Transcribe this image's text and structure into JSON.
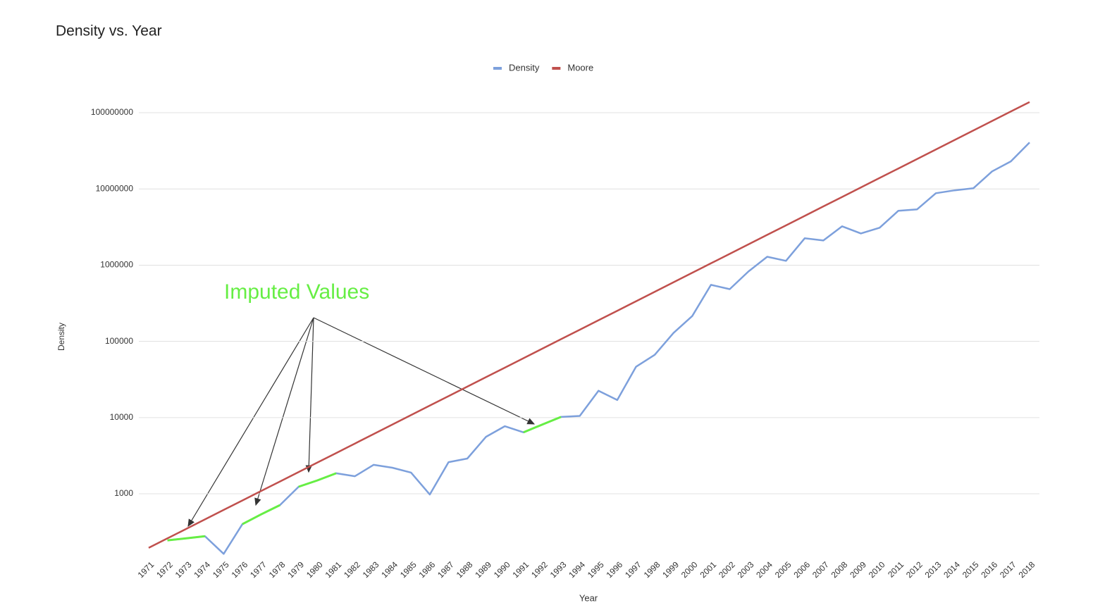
{
  "chart_data": {
    "type": "line",
    "title": "Density vs. Year",
    "x_label": "Year",
    "y_label": "Density",
    "categories": [
      "1971",
      "1972",
      "1973",
      "1974",
      "1975",
      "1976",
      "1977",
      "1978",
      "1979",
      "1980",
      "1981",
      "1982",
      "1983",
      "1984",
      "1985",
      "1986",
      "1987",
      "1988",
      "1989",
      "1990",
      "1991",
      "1992",
      "1993",
      "1994",
      "1995",
      "1996",
      "1997",
      "1998",
      "1999",
      "2000",
      "2001",
      "2002",
      "2003",
      "2004",
      "2005",
      "2006",
      "2007",
      "2008",
      "2009",
      "2010",
      "2011",
      "2012",
      "2013",
      "2014",
      "2015",
      "2016",
      "2017",
      "2018"
    ],
    "series": [
      {
        "name": "Density",
        "color": "#7da0dc",
        "values": [
          null,
          245,
          260,
          278,
          163,
          400,
          538,
          711,
          1238,
          1500,
          1858,
          1700,
          2400,
          2200,
          1900,
          980,
          2600,
          2900,
          5600,
          7700,
          6400,
          8100,
          10200,
          10500,
          22500,
          17000,
          46400,
          66700,
          129000,
          215000,
          551000,
          484000,
          826000,
          1290000,
          1140000,
          2250000,
          2110000,
          3230000,
          2610000,
          3100000,
          5170000,
          5400000,
          8800000,
          9600000,
          10200000,
          17000000,
          23000000,
          40800000
        ]
      },
      {
        "name": "Moore",
        "color": "#c0504d",
        "values": [
          195,
          260,
          346,
          461,
          614,
          817,
          1089,
          1450,
          1931,
          2572,
          3426,
          4563,
          6078,
          8095,
          10780,
          14360,
          19130,
          25480,
          33930,
          45190,
          60190,
          80170,
          106800,
          142200,
          189400,
          252300,
          336000,
          447500,
          596000,
          793800,
          1057000,
          1408000,
          1875000,
          2498000,
          3327000,
          4431000,
          5902000,
          7861000,
          10470000,
          13940000,
          18570000,
          24740000,
          32950000,
          43880000,
          58450000,
          77850000,
          103700000,
          138100000
        ]
      }
    ],
    "ylim": [
      180,
      150000000
    ],
    "yticks": [
      1000,
      10000,
      100000,
      1000000,
      10000000,
      100000000
    ],
    "log_scale": true,
    "grid": true,
    "legend": "top",
    "annotation": {
      "text": "Imputed Values",
      "color": "#66ee44",
      "segments": [
        [
          "1972",
          "1974"
        ],
        [
          "1976",
          "1978"
        ],
        [
          "1979",
          "1981"
        ],
        [
          "1991",
          "1993"
        ]
      ]
    }
  }
}
